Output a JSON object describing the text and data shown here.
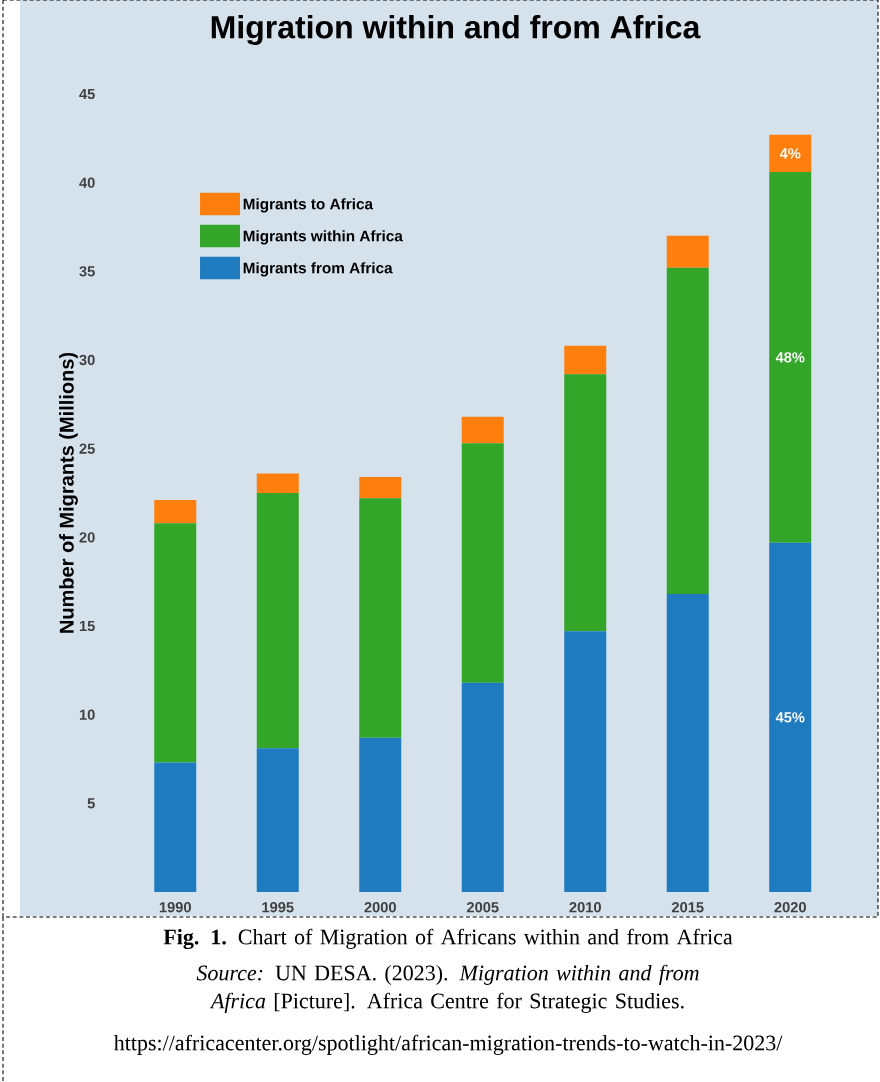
{
  "chart_data": {
    "type": "bar",
    "title": "Migration within and from Africa",
    "ylabel": "Number of Migrants (Millions)",
    "categories": [
      "1990",
      "1995",
      "2000",
      "2005",
      "2010",
      "2015",
      "2020"
    ],
    "stacked": true,
    "series": [
      {
        "name": "Migrants from Africa",
        "color": "#1f7bbf",
        "values": [
          7.3,
          8.1,
          8.7,
          11.8,
          14.7,
          16.8,
          19.7
        ]
      },
      {
        "name": "Migrants within Africa",
        "color": "#33a629",
        "values": [
          13.5,
          14.4,
          13.5,
          13.5,
          14.5,
          18.4,
          20.9
        ]
      },
      {
        "name": "Migrants to Africa",
        "color": "#ff7f0e",
        "values": [
          1.3,
          1.1,
          1.2,
          1.5,
          1.6,
          1.8,
          2.1
        ]
      }
    ],
    "ylim": [
      0,
      45
    ],
    "yticks": [
      5,
      10,
      15,
      20,
      25,
      30,
      35,
      40,
      45
    ],
    "legend": "top left",
    "annotations": [
      "45%",
      "48%",
      "4%",
      "**Fig. 1.** Chart of Migration of Africans within and from Africa",
      "*Source:* UN DESA. (2023). *Migration within and from Africa* [Picture]. Africa Centre for Strategic Studies.",
      "https://africacenter.org/spotlight/african-migration-trends-to-watch-in-2023/"
    ]
  }
}
